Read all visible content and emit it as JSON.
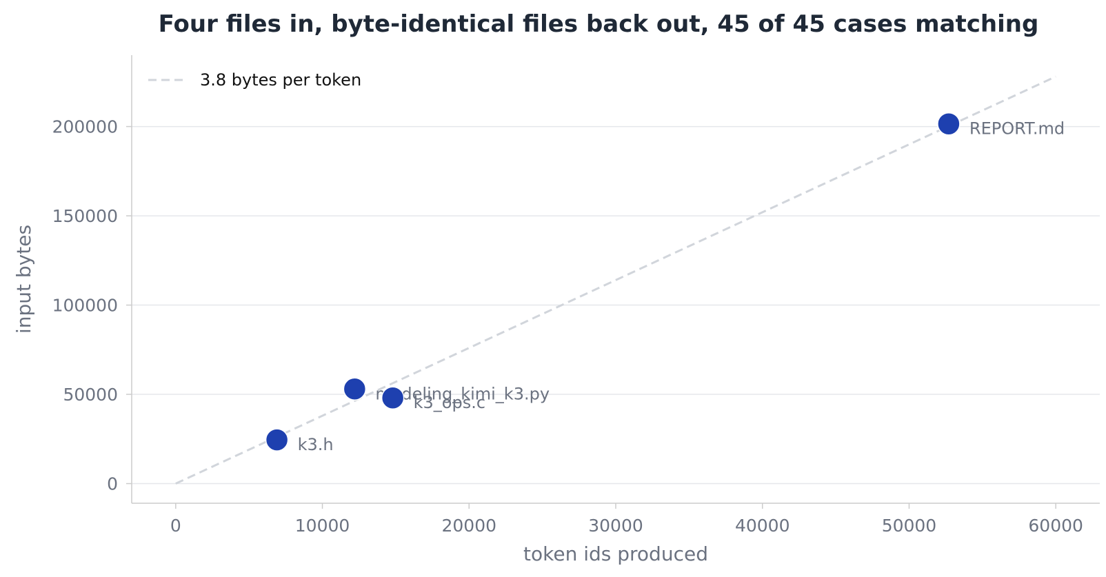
{
  "chart_data": {
    "type": "scatter",
    "title": "Four files in, byte-identical files back out, 45 of 45 cases matching",
    "xlabel": "token ids produced",
    "ylabel": "input bytes",
    "xlim": [
      -3000,
      63000
    ],
    "ylim": [
      -11000,
      240000
    ],
    "x_ticks": [
      0,
      10000,
      20000,
      30000,
      40000,
      50000,
      60000
    ],
    "y_ticks": [
      0,
      50000,
      100000,
      150000,
      200000
    ],
    "x_tick_labels": [
      "0",
      "10000",
      "20000",
      "30000",
      "40000",
      "50000",
      "60000"
    ],
    "y_tick_labels": [
      "0",
      "50000",
      "100000",
      "150000",
      "200000"
    ],
    "grid": "horizontal",
    "legend": {
      "placement": "top-left",
      "entries": [
        "3.8 bytes per token"
      ]
    },
    "reference_line": {
      "name": "3.8 bytes per token",
      "slope": 3.8,
      "x": [
        0,
        60000
      ],
      "style": "dashed"
    },
    "points": [
      {
        "label": "k3.h",
        "x": 6900,
        "y": 24500
      },
      {
        "label": "modeling_kimi_k3.py",
        "x": 12200,
        "y": 53000
      },
      {
        "label": "k3_ops.c",
        "x": 14800,
        "y": 48000
      },
      {
        "label": "REPORT.md",
        "x": 52700,
        "y": 201500
      }
    ],
    "colors": {
      "point": "#1e40af",
      "reference": "#d1d5db",
      "grid": "#e5e7eb",
      "axis": "#cccccc",
      "text": "#6b7280",
      "title": "#1f2937"
    }
  }
}
